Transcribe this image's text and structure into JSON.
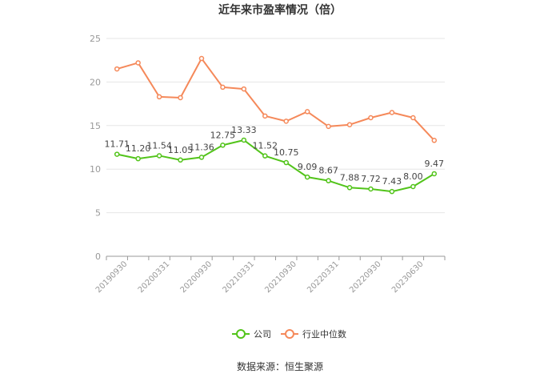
{
  "chart_data": {
    "type": "line",
    "title": "近年来市盈率情况（倍）",
    "xlabel": "",
    "ylabel": "",
    "ylim": [
      0,
      25
    ],
    "yticks": [
      0,
      5,
      10,
      15,
      20,
      25
    ],
    "grid": true,
    "legend_position": "bottom-center",
    "x": [
      "20190930",
      "20191231",
      "20200331",
      "20200630",
      "20200930",
      "20201231",
      "20210331",
      "20210630",
      "20210930",
      "20211231",
      "20220331",
      "20220630",
      "20220930",
      "20221231",
      "20230630",
      "20230930"
    ],
    "x_tick_labels": [
      "20190930",
      "",
      "20200331",
      "",
      "20200930",
      "",
      "20210331",
      "",
      "20210930",
      "",
      "20220331",
      "",
      "20220930",
      "",
      "20230630",
      ""
    ],
    "series": [
      {
        "name": "公司",
        "color": "#52c41a",
        "show_labels": true,
        "values": [
          11.71,
          11.2,
          11.54,
          11.05,
          11.36,
          12.75,
          13.33,
          11.52,
          10.75,
          9.09,
          8.67,
          7.88,
          7.72,
          7.43,
          8.0,
          9.47
        ],
        "labels": [
          "11.71",
          "11.20",
          "11.54",
          "11.05",
          "11.36",
          "12.75",
          "13.33",
          "11.52",
          "10.75",
          "9.09",
          "8.67",
          "7.88",
          "7.72",
          "7.43",
          "8.00",
          "9.47"
        ]
      },
      {
        "name": "行业中位数",
        "color": "#f5895a",
        "show_labels": false,
        "values": [
          21.5,
          22.2,
          18.3,
          18.2,
          22.7,
          19.4,
          19.2,
          16.1,
          15.5,
          16.6,
          14.9,
          15.1,
          15.9,
          16.5,
          15.9,
          13.3
        ]
      }
    ],
    "source": "数据来源：恒生聚源"
  }
}
